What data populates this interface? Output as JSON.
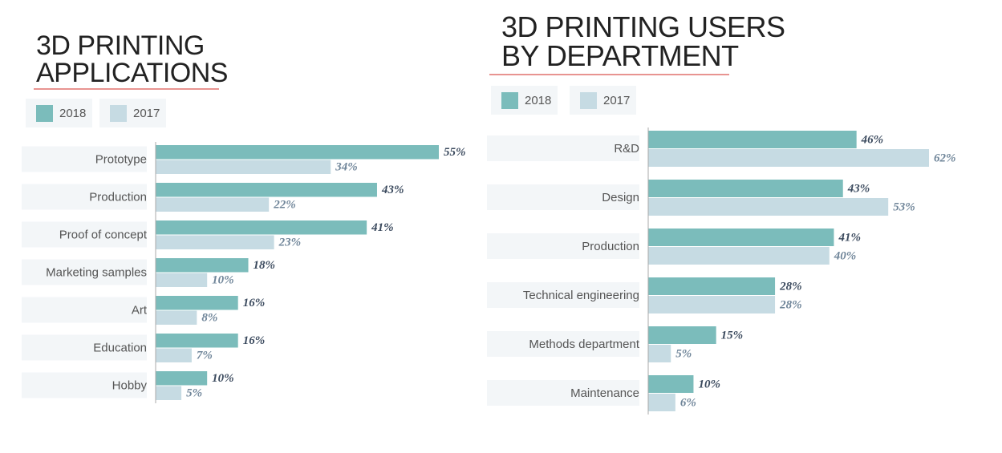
{
  "chart_data": [
    {
      "type": "bar",
      "orientation": "horizontal",
      "title": "3D PRINTING APPLICATIONS",
      "categories": [
        "Prototype",
        "Production",
        "Proof of concept",
        "Marketing samples",
        "Art",
        "Education",
        "Hobby"
      ],
      "series": [
        {
          "name": "2018",
          "color": "#7bbcbb",
          "values": [
            55,
            43,
            41,
            18,
            16,
            16,
            10
          ],
          "value_labels": [
            "55%",
            "43%",
            "41%",
            "18%",
            "16%",
            "16%",
            "10%"
          ]
        },
        {
          "name": "2017",
          "color": "#c6dbe3",
          "values": [
            34,
            22,
            23,
            10,
            8,
            7,
            5
          ],
          "value_labels": [
            "34%",
            "22%",
            "23%",
            "10%",
            "8%",
            "7%",
            "5%"
          ]
        }
      ]
    },
    {
      "type": "bar",
      "orientation": "horizontal",
      "title": "3D PRINTING USERS BY DEPARTMENT",
      "categories": [
        "R&D",
        "Design",
        "Production",
        "Technical engineering",
        "Methods department",
        "Maintenance"
      ],
      "series": [
        {
          "name": "2018",
          "color": "#7bbcbb",
          "values": [
            46,
            43,
            41,
            28,
            15,
            10
          ],
          "value_labels": [
            "46%",
            "43%",
            "41%",
            "28%",
            "15%",
            "10%"
          ]
        },
        {
          "name": "2017",
          "color": "#c6dbe3",
          "values": [
            62,
            53,
            40,
            28,
            5,
            6
          ],
          "value_labels": [
            "62%",
            "53%",
            "40%",
            "28%",
            "5%",
            "6%"
          ]
        }
      ]
    }
  ]
}
